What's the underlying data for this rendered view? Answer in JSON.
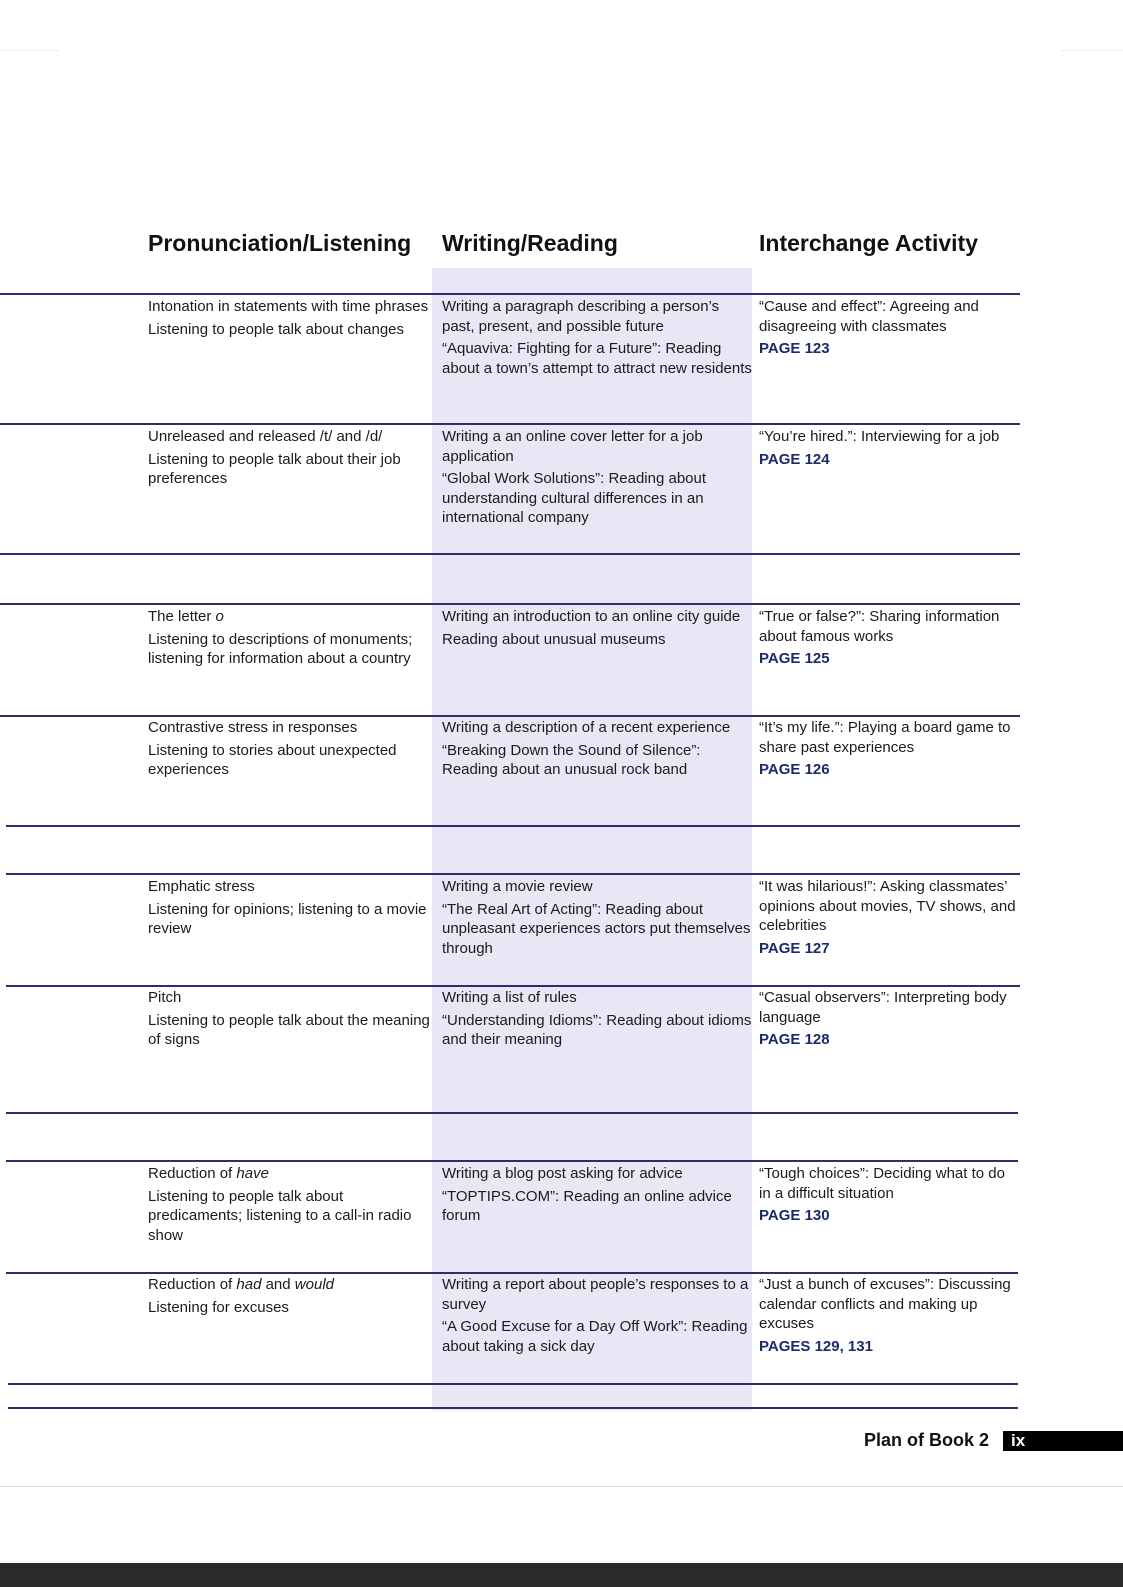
{
  "headers": {
    "col1": "Pronunciation/Listening",
    "col2": "Writing/Reading",
    "col3": "Interchange Activity"
  },
  "rows": [
    {
      "col1": [
        [
          {
            "t": "Intonation in statements with time phrases"
          }
        ],
        [
          {
            "t": "Listening to people talk about changes"
          }
        ]
      ],
      "col2": [
        [
          {
            "t": "Writing a paragraph describing a person’s past, present, and possible future"
          }
        ],
        [
          {
            "t": "“Aquaviva: Fighting for a Future”: Reading about a town’s attempt to attract new residents"
          }
        ]
      ],
      "col3": "“Cause and effect”: Agreeing and disagreeing with classmates",
      "page": "PAGE 123"
    },
    {
      "col1": [
        [
          {
            "t": "Unreleased and released /t/ and /d/"
          }
        ],
        [
          {
            "t": "Listening to people talk about their job preferences"
          }
        ]
      ],
      "col2": [
        [
          {
            "t": "Writing a an online cover letter for a job application"
          }
        ],
        [
          {
            "t": "“Global Work Solutions”: Reading about understanding cultural differences in an international company"
          }
        ]
      ],
      "col3": "“You’re hired.”: Interviewing for a job",
      "page": "PAGE 124"
    },
    {
      "col1": [
        [
          {
            "t": "The letter "
          },
          {
            "t": "o",
            "i": true
          }
        ],
        [
          {
            "t": "Listening to descriptions of monuments; listening for information about a country"
          }
        ]
      ],
      "col2": [
        [
          {
            "t": "Writing an introduction to an online city guide"
          }
        ],
        [
          {
            "t": "Reading about unusual museums"
          }
        ]
      ],
      "col3": "“True or false?”: Sharing information about famous works",
      "page": "PAGE 125"
    },
    {
      "col1": [
        [
          {
            "t": "Contrastive stress in responses"
          }
        ],
        [
          {
            "t": "Listening to stories about unexpected experiences"
          }
        ]
      ],
      "col2": [
        [
          {
            "t": "Writing a description of a recent experience"
          }
        ],
        [
          {
            "t": "“Breaking Down the Sound of Silence”: Reading about an unusual rock band"
          }
        ]
      ],
      "col3": "“It’s my life.”: Playing a board game to share past experiences",
      "page": "PAGE 126"
    },
    {
      "col1": [
        [
          {
            "t": "Emphatic stress"
          }
        ],
        [
          {
            "t": "Listening for opinions; listening to a movie review"
          }
        ]
      ],
      "col2": [
        [
          {
            "t": "Writing a movie review"
          }
        ],
        [
          {
            "t": "“The Real Art of Acting”: Reading about unpleasant experiences actors put themselves through"
          }
        ]
      ],
      "col3": "“It was hilarious!”: Asking classmates’ opinions about movies, TV shows, and celebrities",
      "page": "PAGE 127"
    },
    {
      "col1": [
        [
          {
            "t": "Pitch"
          }
        ],
        [
          {
            "t": "Listening to people talk about the meaning of signs"
          }
        ]
      ],
      "col2": [
        [
          {
            "t": "Writing a list of rules"
          }
        ],
        [
          {
            "t": "“Understanding Idioms”: Reading about idioms and their meaning"
          }
        ]
      ],
      "col3": "“Casual observers”: Interpreting body language",
      "page": "PAGE 128"
    },
    {
      "col1": [
        [
          {
            "t": "Reduction of "
          },
          {
            "t": "have",
            "i": true
          }
        ],
        [
          {
            "t": "Listening to people talk about predicaments; listening to a call-in radio show"
          }
        ]
      ],
      "col2": [
        [
          {
            "t": "Writing a blog post asking for advice"
          }
        ],
        [
          {
            "t": "“TOPTIPS.COM”: Reading an online advice forum"
          }
        ]
      ],
      "col3": "“Tough choices”: Deciding what to do in a difficult situation",
      "page": "PAGE 130"
    },
    {
      "col1": [
        [
          {
            "t": "Reduction of "
          },
          {
            "t": "had",
            "i": true
          },
          {
            "t": " and "
          },
          {
            "t": "would",
            "i": true
          }
        ],
        [
          {
            "t": "Listening for excuses"
          }
        ]
      ],
      "col2": [
        [
          {
            "t": "Writing a report about people’s responses to a survey"
          }
        ],
        [
          {
            "t": "“A Good Excuse for a Day Off Work”: Reading about taking a sick day"
          }
        ]
      ],
      "col3": "“Just a bunch of excuses”: Discussing calendar conflicts and making up excuses",
      "page": "PAGES 129, 131"
    }
  ],
  "footer": {
    "title": "Plan of Book 2",
    "page_number": "ix"
  },
  "colors": {
    "rule": "#2a2f6e",
    "page_ref": "#1d2a6b",
    "band": "#e9e6f6"
  }
}
